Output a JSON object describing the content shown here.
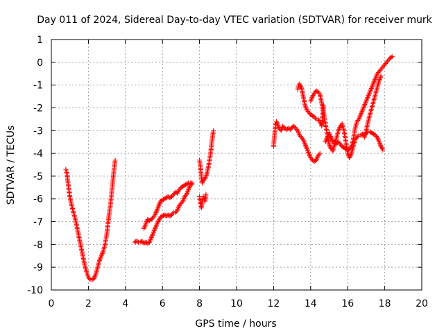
{
  "chart_data": {
    "type": "scatter",
    "title": "Day 011 of 2024, Sidereal Day-to-day VTEC variation (SDTVAR) for receiver murk",
    "xlabel": "GPS time / hours",
    "ylabel": "SDTVAR / TECUs",
    "xlim": [
      0,
      20
    ],
    "ylim": [
      -10,
      1
    ],
    "xticks": [
      "0",
      "2",
      "4",
      "6",
      "8",
      "10",
      "12",
      "14",
      "16",
      "18",
      "20"
    ],
    "yticks": [
      "1",
      "0",
      "-1",
      "-2",
      "-3",
      "-4",
      "-5",
      "-6",
      "-7",
      "-8",
      "-9",
      "-10"
    ],
    "grid": true,
    "marker": "plus",
    "color": "#ff0000",
    "segments": [
      [
        [
          0.78,
          -4.7
        ],
        [
          0.85,
          -4.9
        ],
        [
          0.9,
          -5.3
        ],
        [
          1.0,
          -5.9
        ],
        [
          1.1,
          -6.3
        ],
        [
          1.2,
          -6.6
        ],
        [
          1.3,
          -6.9
        ],
        [
          1.4,
          -7.3
        ],
        [
          1.5,
          -7.7
        ],
        [
          1.6,
          -8.1
        ],
        [
          1.7,
          -8.5
        ],
        [
          1.8,
          -8.9
        ],
        [
          1.9,
          -9.2
        ],
        [
          2.0,
          -9.45
        ],
        [
          2.1,
          -9.55
        ],
        [
          2.2,
          -9.55
        ],
        [
          2.3,
          -9.5
        ],
        [
          2.4,
          -9.3
        ],
        [
          2.5,
          -9.0
        ],
        [
          2.6,
          -8.7
        ],
        [
          2.7,
          -8.5
        ],
        [
          2.8,
          -8.3
        ],
        [
          2.9,
          -8.0
        ],
        [
          3.0,
          -7.5
        ],
        [
          3.1,
          -6.8
        ],
        [
          3.2,
          -6.2
        ],
        [
          3.3,
          -5.4
        ],
        [
          3.4,
          -4.6
        ],
        [
          3.45,
          -4.3
        ]
      ],
      [
        [
          4.5,
          -7.9
        ],
        [
          4.6,
          -7.85
        ],
        [
          4.7,
          -7.9
        ],
        [
          4.8,
          -7.9
        ],
        [
          4.9,
          -7.85
        ],
        [
          5.0,
          -7.95
        ],
        [
          5.1,
          -7.9
        ],
        [
          5.2,
          -7.95
        ],
        [
          5.3,
          -7.9
        ],
        [
          5.4,
          -7.7
        ],
        [
          5.5,
          -7.5
        ],
        [
          5.6,
          -7.3
        ],
        [
          5.7,
          -7.1
        ],
        [
          5.8,
          -6.95
        ],
        [
          5.9,
          -6.8
        ],
        [
          6.0,
          -6.75
        ],
        [
          6.1,
          -6.7
        ],
        [
          6.2,
          -6.75
        ],
        [
          6.3,
          -6.7
        ],
        [
          6.4,
          -6.75
        ],
        [
          6.5,
          -6.7
        ],
        [
          6.6,
          -6.6
        ],
        [
          6.7,
          -6.6
        ],
        [
          6.8,
          -6.5
        ],
        [
          6.9,
          -6.3
        ],
        [
          7.0,
          -6.2
        ],
        [
          7.1,
          -6.1
        ],
        [
          7.2,
          -5.9
        ],
        [
          7.3,
          -5.8
        ],
        [
          7.4,
          -5.6
        ],
        [
          7.5,
          -5.4
        ],
        [
          7.6,
          -5.3
        ]
      ],
      [
        [
          5.0,
          -7.3
        ],
        [
          5.1,
          -7.1
        ],
        [
          5.2,
          -6.9
        ],
        [
          5.3,
          -6.95
        ],
        [
          5.4,
          -6.9
        ],
        [
          5.5,
          -6.8
        ],
        [
          5.6,
          -6.7
        ],
        [
          5.7,
          -6.5
        ],
        [
          5.8,
          -6.3
        ],
        [
          5.9,
          -6.1
        ],
        [
          6.0,
          -6.05
        ],
        [
          6.1,
          -6.0
        ],
        [
          6.2,
          -5.95
        ],
        [
          6.3,
          -5.9
        ],
        [
          6.4,
          -5.95
        ],
        [
          6.5,
          -5.9
        ],
        [
          6.6,
          -5.8
        ],
        [
          6.7,
          -5.7
        ],
        [
          6.8,
          -5.75
        ],
        [
          6.9,
          -5.6
        ],
        [
          7.0,
          -5.5
        ],
        [
          7.1,
          -5.45
        ],
        [
          7.2,
          -5.4
        ],
        [
          7.3,
          -5.35
        ],
        [
          7.4,
          -5.3
        ],
        [
          7.5,
          -5.3
        ],
        [
          7.6,
          -5.35
        ]
      ],
      [
        [
          8.0,
          -4.3
        ],
        [
          8.05,
          -4.6
        ],
        [
          8.1,
          -5.0
        ],
        [
          8.15,
          -5.3
        ],
        [
          8.2,
          -5.2
        ],
        [
          8.3,
          -5.1
        ],
        [
          8.4,
          -4.9
        ],
        [
          8.5,
          -4.5
        ],
        [
          8.6,
          -4.0
        ],
        [
          8.65,
          -3.6
        ],
        [
          8.7,
          -3.3
        ],
        [
          8.75,
          -3.0
        ]
      ],
      [
        [
          8.0,
          -5.9
        ],
        [
          8.05,
          -6.2
        ],
        [
          8.1,
          -6.4
        ],
        [
          8.15,
          -6.1
        ],
        [
          8.2,
          -5.9
        ],
        [
          8.3,
          -6.1
        ],
        [
          8.35,
          -5.8
        ]
      ],
      [
        [
          12.0,
          -3.7
        ],
        [
          12.05,
          -3.2
        ],
        [
          12.1,
          -2.8
        ],
        [
          12.15,
          -2.6
        ],
        [
          12.2,
          -2.7
        ],
        [
          12.3,
          -2.9
        ],
        [
          12.4,
          -3.0
        ],
        [
          12.5,
          -2.8
        ],
        [
          12.6,
          -2.9
        ],
        [
          12.7,
          -2.95
        ],
        [
          12.8,
          -2.9
        ],
        [
          12.9,
          -2.95
        ],
        [
          13.0,
          -2.85
        ],
        [
          13.1,
          -2.8
        ],
        [
          13.2,
          -2.9
        ],
        [
          13.3,
          -3.0
        ],
        [
          13.4,
          -3.2
        ],
        [
          13.5,
          -3.3
        ],
        [
          13.6,
          -3.4
        ],
        [
          13.7,
          -3.6
        ],
        [
          13.8,
          -3.8
        ],
        [
          13.9,
          -4.0
        ],
        [
          14.0,
          -4.2
        ],
        [
          14.1,
          -4.3
        ],
        [
          14.2,
          -4.35
        ],
        [
          14.3,
          -4.3
        ],
        [
          14.4,
          -4.1
        ],
        [
          14.5,
          -4.0
        ]
      ],
      [
        [
          13.3,
          -1.2
        ],
        [
          13.35,
          -1.0
        ],
        [
          13.4,
          -0.95
        ],
        [
          13.5,
          -1.1
        ],
        [
          13.6,
          -1.5
        ],
        [
          13.7,
          -1.9
        ],
        [
          13.8,
          -2.1
        ],
        [
          13.9,
          -2.2
        ],
        [
          14.0,
          -2.3
        ],
        [
          14.1,
          -2.35
        ],
        [
          14.2,
          -2.4
        ],
        [
          14.3,
          -2.5
        ],
        [
          14.4,
          -2.5
        ],
        [
          14.5,
          -2.6
        ],
        [
          14.6,
          -2.8
        ],
        [
          14.65,
          -2.3
        ],
        [
          14.7,
          -1.9
        ]
      ],
      [
        [
          14.0,
          -1.7
        ],
        [
          14.1,
          -1.5
        ],
        [
          14.2,
          -1.35
        ],
        [
          14.3,
          -1.25
        ],
        [
          14.4,
          -1.3
        ],
        [
          14.5,
          -1.4
        ],
        [
          14.6,
          -1.8
        ],
        [
          14.7,
          -2.2
        ],
        [
          14.8,
          -2.7
        ],
        [
          14.9,
          -3.2
        ],
        [
          15.0,
          -3.6
        ],
        [
          15.1,
          -3.8
        ],
        [
          15.2,
          -3.9
        ],
        [
          15.3,
          -3.6
        ],
        [
          15.4,
          -3.3
        ],
        [
          15.5,
          -3.0
        ],
        [
          15.6,
          -2.8
        ],
        [
          15.7,
          -2.7
        ],
        [
          15.8,
          -3.0
        ],
        [
          15.9,
          -3.5
        ],
        [
          16.0,
          -4.0
        ],
        [
          16.1,
          -4.2
        ],
        [
          16.2,
          -4.0
        ],
        [
          16.3,
          -3.7
        ],
        [
          16.4,
          -3.4
        ],
        [
          16.5,
          -3.3
        ],
        [
          16.6,
          -3.2
        ],
        [
          16.7,
          -3.2
        ],
        [
          16.8,
          -3.15
        ],
        [
          16.9,
          -3.2
        ],
        [
          17.0,
          -3.1
        ],
        [
          17.1,
          -3.05
        ],
        [
          17.2,
          -3.05
        ],
        [
          17.3,
          -3.1
        ],
        [
          17.4,
          -3.15
        ],
        [
          17.5,
          -3.2
        ],
        [
          17.6,
          -3.3
        ],
        [
          17.7,
          -3.5
        ],
        [
          17.8,
          -3.7
        ],
        [
          17.9,
          -3.85
        ]
      ],
      [
        [
          14.8,
          -3.5
        ],
        [
          14.9,
          -3.3
        ],
        [
          15.0,
          -3.1
        ],
        [
          15.1,
          -3.3
        ],
        [
          15.2,
          -3.5
        ],
        [
          15.3,
          -3.6
        ],
        [
          15.4,
          -3.55
        ],
        [
          15.5,
          -3.5
        ],
        [
          15.6,
          -3.6
        ],
        [
          15.7,
          -3.7
        ],
        [
          15.8,
          -3.75
        ],
        [
          15.9,
          -3.8
        ],
        [
          16.0,
          -3.85
        ],
        [
          16.1,
          -3.8
        ],
        [
          16.2,
          -3.7
        ],
        [
          16.3,
          -3.4
        ],
        [
          16.4,
          -2.9
        ],
        [
          16.5,
          -2.6
        ],
        [
          16.6,
          -2.5
        ],
        [
          16.7,
          -2.3
        ],
        [
          16.8,
          -2.1
        ],
        [
          16.9,
          -1.9
        ],
        [
          17.0,
          -1.7
        ],
        [
          17.1,
          -1.5
        ],
        [
          17.2,
          -1.3
        ],
        [
          17.3,
          -1.1
        ],
        [
          17.4,
          -0.9
        ],
        [
          17.5,
          -0.7
        ],
        [
          17.6,
          -0.5
        ],
        [
          17.7,
          -0.4
        ],
        [
          17.8,
          -0.3
        ],
        [
          17.9,
          -0.2
        ],
        [
          18.0,
          -0.1
        ],
        [
          18.1,
          0.0
        ],
        [
          18.2,
          0.1
        ],
        [
          18.3,
          0.2
        ],
        [
          18.4,
          0.25
        ]
      ],
      [
        [
          16.9,
          -3.3
        ],
        [
          17.0,
          -3.0
        ],
        [
          17.1,
          -2.6
        ],
        [
          17.2,
          -2.3
        ],
        [
          17.3,
          -2.0
        ],
        [
          17.4,
          -1.7
        ],
        [
          17.5,
          -1.4
        ],
        [
          17.6,
          -1.1
        ],
        [
          17.7,
          -0.8
        ],
        [
          17.8,
          -0.6
        ]
      ]
    ]
  }
}
